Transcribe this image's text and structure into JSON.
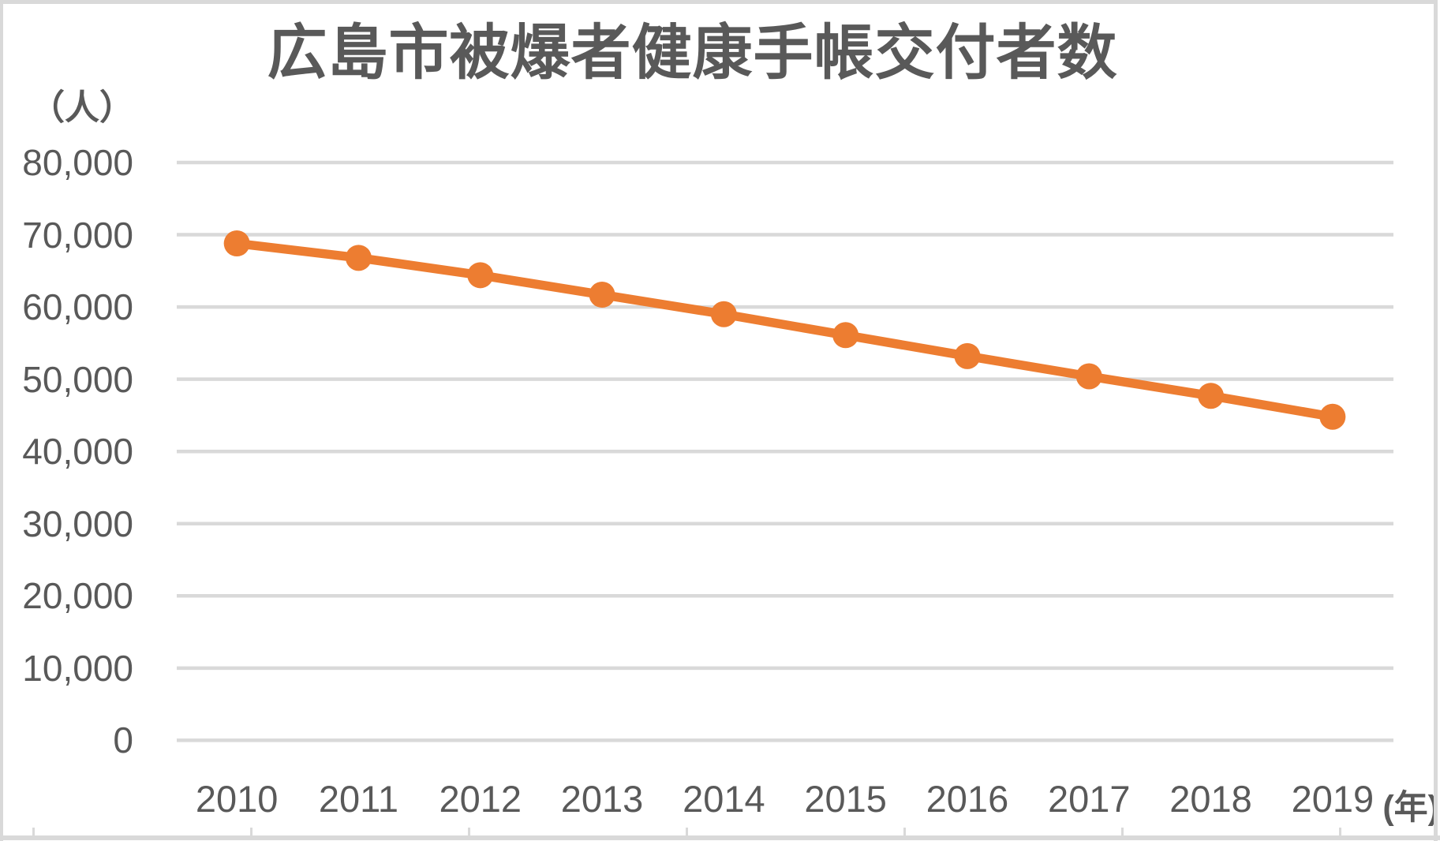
{
  "chart_data": {
    "type": "line",
    "title": "広島市被爆者健康手帳交付者数",
    "categories": [
      "2010",
      "2011",
      "2012",
      "2013",
      "2014",
      "2015",
      "2016",
      "2017",
      "2018",
      "2019"
    ],
    "values": [
      68800,
      66800,
      64400,
      61700,
      59000,
      56100,
      53200,
      50400,
      47700,
      44800
    ],
    "xlabel": "(年)",
    "ylabel": "（人）",
    "ylim": [
      0,
      80000
    ],
    "y_ticks": [
      0,
      10000,
      20000,
      30000,
      40000,
      50000,
      60000,
      70000,
      80000
    ],
    "y_tick_labels": [
      "0",
      "10,000",
      "20,000",
      "30,000",
      "40,000",
      "50,000",
      "60,000",
      "70,000",
      "80,000"
    ],
    "grid": true,
    "legend": false,
    "line_color": "#ED7D31",
    "marker_color": "#ED7D31",
    "text_color": "#595959",
    "gridline_color": "#D9D9D9",
    "background_color": "#FFFFFF",
    "frame_color": "#D9D9D9"
  }
}
